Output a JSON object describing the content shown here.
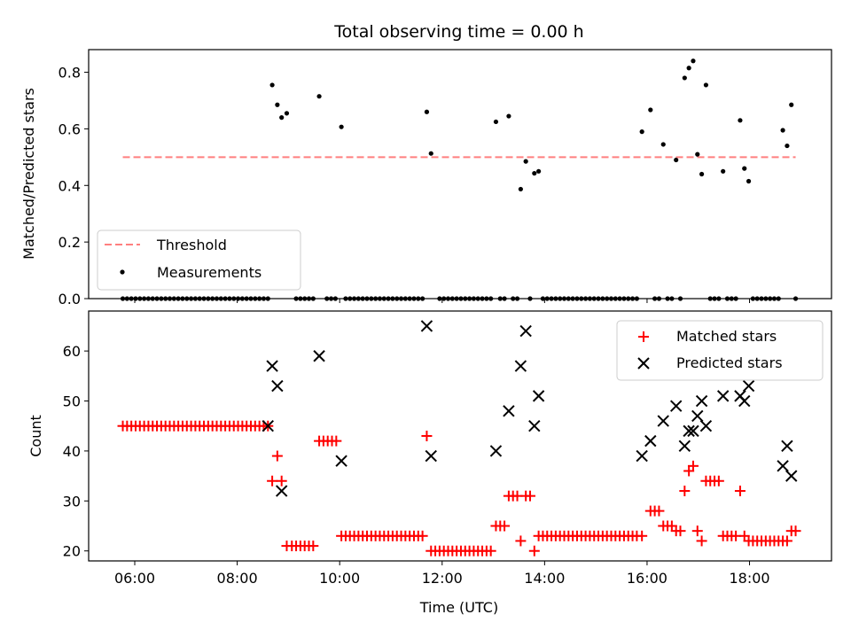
{
  "chart_data": [
    {
      "type": "scatter",
      "title": "Total observing time = 0.00 h",
      "xlabel": "",
      "ylabel": "Matched/Predicted stars",
      "xlim": [
        "05:06",
        "19:36"
      ],
      "ylim": [
        0,
        0.88
      ],
      "yticks": [
        "0.0",
        "0.2",
        "0.4",
        "0.6",
        "0.8"
      ],
      "ytick_values": [
        0,
        0.2,
        0.4,
        0.6,
        0.8
      ],
      "xtick_values": [
        "06:00",
        "08:00",
        "10:00",
        "12:00",
        "14:00",
        "16:00",
        "18:00"
      ],
      "grid": false,
      "legend_position": "lower-left",
      "threshold": {
        "name": "Threshold",
        "color": "#ff7f7f",
        "style": "dashed",
        "value": 0.5,
        "x_range": [
          "05:46",
          "18:54"
        ]
      },
      "measurements": {
        "name": "Measurements",
        "color": "#000000",
        "points": [
          [
            "08:41",
            0.755
          ],
          [
            "08:47",
            0.685
          ],
          [
            "08:52",
            0.64
          ],
          [
            "08:58",
            0.655
          ],
          [
            "09:36",
            0.715
          ],
          [
            "10:02",
            0.607
          ],
          [
            "11:42",
            0.66
          ],
          [
            "11:47",
            0.513
          ],
          [
            "13:03",
            0.625
          ],
          [
            "13:18",
            0.645
          ],
          [
            "13:32",
            0.387
          ],
          [
            "13:38",
            0.485
          ],
          [
            "13:48",
            0.443
          ],
          [
            "13:53",
            0.45
          ],
          [
            "15:54",
            0.59
          ],
          [
            "16:04",
            0.667
          ],
          [
            "16:19",
            0.545
          ],
          [
            "16:34",
            0.49
          ],
          [
            "16:44",
            0.78
          ],
          [
            "16:49",
            0.815
          ],
          [
            "16:54",
            0.84
          ],
          [
            "16:59",
            0.51
          ],
          [
            "17:04",
            0.44
          ],
          [
            "17:09",
            0.755
          ],
          [
            "17:29",
            0.45
          ],
          [
            "17:49",
            0.63
          ],
          [
            "17:54",
            0.46
          ],
          [
            "17:59",
            0.415
          ],
          [
            "18:39",
            0.595
          ],
          [
            "18:44",
            0.54
          ],
          [
            "18:49",
            0.685
          ]
        ],
        "zero_points_x": [
          "05:46",
          "05:51",
          "05:56",
          "06:01",
          "06:06",
          "06:11",
          "06:16",
          "06:21",
          "06:26",
          "06:31",
          "06:36",
          "06:41",
          "06:46",
          "06:51",
          "06:56",
          "07:01",
          "07:06",
          "07:11",
          "07:16",
          "07:21",
          "07:26",
          "07:31",
          "07:36",
          "07:41",
          "07:46",
          "07:51",
          "07:56",
          "08:01",
          "08:06",
          "08:11",
          "08:16",
          "08:21",
          "08:26",
          "08:31",
          "08:36",
          "09:09",
          "09:14",
          "09:19",
          "09:24",
          "09:29",
          "09:45",
          "09:50",
          "09:55",
          "10:07",
          "10:12",
          "10:17",
          "10:22",
          "10:27",
          "10:32",
          "10:37",
          "10:42",
          "10:47",
          "10:52",
          "10:57",
          "11:02",
          "11:07",
          "11:12",
          "11:17",
          "11:22",
          "11:27",
          "11:32",
          "11:37",
          "11:57",
          "12:02",
          "12:07",
          "12:12",
          "12:17",
          "12:22",
          "12:27",
          "12:32",
          "12:37",
          "12:42",
          "12:47",
          "12:52",
          "12:57",
          "13:08",
          "13:13",
          "13:23",
          "13:28",
          "13:43",
          "13:58",
          "14:03",
          "14:08",
          "14:13",
          "14:18",
          "14:23",
          "14:28",
          "14:33",
          "14:38",
          "14:43",
          "14:48",
          "14:53",
          "14:58",
          "15:03",
          "15:08",
          "15:13",
          "15:18",
          "15:23",
          "15:28",
          "15:33",
          "15:38",
          "15:43",
          "15:48",
          "16:09",
          "16:14",
          "16:24",
          "16:29",
          "16:39",
          "17:14",
          "17:19",
          "17:24",
          "17:34",
          "17:39",
          "17:44",
          "18:04",
          "18:09",
          "18:14",
          "18:19",
          "18:24",
          "18:29",
          "18:34",
          "18:54"
        ]
      }
    },
    {
      "type": "scatter",
      "xlabel": "Time (UTC)",
      "ylabel": "Count",
      "xlim": [
        "05:06",
        "19:36"
      ],
      "ylim": [
        18,
        68
      ],
      "yticks": [
        "20",
        "30",
        "40",
        "50",
        "60"
      ],
      "ytick_values": [
        20,
        30,
        40,
        50,
        60
      ],
      "xticks": [
        "06:00",
        "08:00",
        "10:00",
        "12:00",
        "14:00",
        "16:00",
        "18:00"
      ],
      "xtick_values": [
        "06:00",
        "08:00",
        "10:00",
        "12:00",
        "14:00",
        "16:00",
        "18:00"
      ],
      "grid": false,
      "legend_position": "upper-right",
      "matched": {
        "name": "Matched stars",
        "color": "#ff0000",
        "marker": "plus",
        "points": [
          [
            "05:46",
            45
          ],
          [
            "05:51",
            45
          ],
          [
            "05:56",
            45
          ],
          [
            "06:01",
            45
          ],
          [
            "06:06",
            45
          ],
          [
            "06:11",
            45
          ],
          [
            "06:16",
            45
          ],
          [
            "06:21",
            45
          ],
          [
            "06:26",
            45
          ],
          [
            "06:31",
            45
          ],
          [
            "06:36",
            45
          ],
          [
            "06:41",
            45
          ],
          [
            "06:46",
            45
          ],
          [
            "06:51",
            45
          ],
          [
            "06:56",
            45
          ],
          [
            "07:01",
            45
          ],
          [
            "07:06",
            45
          ],
          [
            "07:11",
            45
          ],
          [
            "07:16",
            45
          ],
          [
            "07:21",
            45
          ],
          [
            "07:26",
            45
          ],
          [
            "07:31",
            45
          ],
          [
            "07:36",
            45
          ],
          [
            "07:41",
            45
          ],
          [
            "07:46",
            45
          ],
          [
            "07:51",
            45
          ],
          [
            "07:56",
            45
          ],
          [
            "08:01",
            45
          ],
          [
            "08:06",
            45
          ],
          [
            "08:11",
            45
          ],
          [
            "08:16",
            45
          ],
          [
            "08:21",
            45
          ],
          [
            "08:26",
            45
          ],
          [
            "08:31",
            45
          ],
          [
            "08:36",
            45
          ],
          [
            "08:41",
            34
          ],
          [
            "08:47",
            39
          ],
          [
            "08:52",
            34
          ],
          [
            "08:58",
            21
          ],
          [
            "09:04",
            21
          ],
          [
            "09:09",
            21
          ],
          [
            "09:14",
            21
          ],
          [
            "09:19",
            21
          ],
          [
            "09:24",
            21
          ],
          [
            "09:29",
            21
          ],
          [
            "09:36",
            42
          ],
          [
            "09:41",
            42
          ],
          [
            "09:46",
            42
          ],
          [
            "09:51",
            42
          ],
          [
            "09:56",
            42
          ],
          [
            "10:02",
            23
          ],
          [
            "10:07",
            23
          ],
          [
            "10:12",
            23
          ],
          [
            "10:17",
            23
          ],
          [
            "10:22",
            23
          ],
          [
            "10:27",
            23
          ],
          [
            "10:32",
            23
          ],
          [
            "10:37",
            23
          ],
          [
            "10:42",
            23
          ],
          [
            "10:47",
            23
          ],
          [
            "10:52",
            23
          ],
          [
            "10:57",
            23
          ],
          [
            "11:02",
            23
          ],
          [
            "11:07",
            23
          ],
          [
            "11:12",
            23
          ],
          [
            "11:17",
            23
          ],
          [
            "11:22",
            23
          ],
          [
            "11:27",
            23
          ],
          [
            "11:32",
            23
          ],
          [
            "11:37",
            23
          ],
          [
            "11:42",
            43
          ],
          [
            "11:47",
            20
          ],
          [
            "11:52",
            20
          ],
          [
            "11:57",
            20
          ],
          [
            "12:02",
            20
          ],
          [
            "12:07",
            20
          ],
          [
            "12:12",
            20
          ],
          [
            "12:17",
            20
          ],
          [
            "12:22",
            20
          ],
          [
            "12:27",
            20
          ],
          [
            "12:32",
            20
          ],
          [
            "12:37",
            20
          ],
          [
            "12:42",
            20
          ],
          [
            "12:47",
            20
          ],
          [
            "12:52",
            20
          ],
          [
            "12:57",
            20
          ],
          [
            "13:03",
            25
          ],
          [
            "13:08",
            25
          ],
          [
            "13:13",
            25
          ],
          [
            "13:18",
            31
          ],
          [
            "13:23",
            31
          ],
          [
            "13:28",
            31
          ],
          [
            "13:38",
            31
          ],
          [
            "13:43",
            31
          ],
          [
            "13:32",
            22
          ],
          [
            "13:48",
            20
          ],
          [
            "13:53",
            23
          ],
          [
            "13:58",
            23
          ],
          [
            "14:03",
            23
          ],
          [
            "14:08",
            23
          ],
          [
            "14:13",
            23
          ],
          [
            "14:18",
            23
          ],
          [
            "14:23",
            23
          ],
          [
            "14:28",
            23
          ],
          [
            "14:33",
            23
          ],
          [
            "14:38",
            23
          ],
          [
            "14:43",
            23
          ],
          [
            "14:48",
            23
          ],
          [
            "14:53",
            23
          ],
          [
            "14:58",
            23
          ],
          [
            "15:03",
            23
          ],
          [
            "15:08",
            23
          ],
          [
            "15:13",
            23
          ],
          [
            "15:18",
            23
          ],
          [
            "15:23",
            23
          ],
          [
            "15:28",
            23
          ],
          [
            "15:33",
            23
          ],
          [
            "15:38",
            23
          ],
          [
            "15:43",
            23
          ],
          [
            "15:48",
            23
          ],
          [
            "15:54",
            23
          ],
          [
            "16:04",
            28
          ],
          [
            "16:09",
            28
          ],
          [
            "16:14",
            28
          ],
          [
            "16:19",
            25
          ],
          [
            "16:24",
            25
          ],
          [
            "16:29",
            25
          ],
          [
            "16:34",
            24
          ],
          [
            "16:39",
            24
          ],
          [
            "16:44",
            32
          ],
          [
            "16:49",
            36
          ],
          [
            "16:54",
            37
          ],
          [
            "16:59",
            24
          ],
          [
            "17:04",
            22
          ],
          [
            "17:09",
            34
          ],
          [
            "17:14",
            34
          ],
          [
            "17:19",
            34
          ],
          [
            "17:24",
            34
          ],
          [
            "17:29",
            23
          ],
          [
            "17:34",
            23
          ],
          [
            "17:39",
            23
          ],
          [
            "17:44",
            23
          ],
          [
            "17:49",
            32
          ],
          [
            "17:54",
            23
          ],
          [
            "17:59",
            22
          ],
          [
            "18:04",
            22
          ],
          [
            "18:09",
            22
          ],
          [
            "18:14",
            22
          ],
          [
            "18:19",
            22
          ],
          [
            "18:24",
            22
          ],
          [
            "18:29",
            22
          ],
          [
            "18:34",
            22
          ],
          [
            "18:39",
            22
          ],
          [
            "18:44",
            22
          ],
          [
            "18:49",
            24
          ],
          [
            "18:54",
            24
          ]
        ]
      },
      "predicted": {
        "name": "Predicted stars",
        "color": "#000000",
        "marker": "x",
        "points": [
          [
            "08:36",
            45
          ],
          [
            "08:41",
            57
          ],
          [
            "08:47",
            53
          ],
          [
            "08:52",
            32
          ],
          [
            "09:36",
            59
          ],
          [
            "10:02",
            38
          ],
          [
            "11:42",
            65
          ],
          [
            "11:47",
            39
          ],
          [
            "13:03",
            40
          ],
          [
            "13:18",
            48
          ],
          [
            "13:32",
            57
          ],
          [
            "13:38",
            64
          ],
          [
            "13:48",
            45
          ],
          [
            "13:53",
            51
          ],
          [
            "15:54",
            39
          ],
          [
            "16:04",
            42
          ],
          [
            "16:19",
            46
          ],
          [
            "16:34",
            49
          ],
          [
            "16:44",
            41
          ],
          [
            "16:49",
            44
          ],
          [
            "16:54",
            44
          ],
          [
            "16:59",
            47
          ],
          [
            "17:04",
            50
          ],
          [
            "17:09",
            45
          ],
          [
            "17:29",
            51
          ],
          [
            "17:49",
            51
          ],
          [
            "17:54",
            50
          ],
          [
            "17:59",
            53
          ],
          [
            "18:39",
            37
          ],
          [
            "18:44",
            41
          ],
          [
            "18:49",
            35
          ]
        ]
      }
    }
  ]
}
